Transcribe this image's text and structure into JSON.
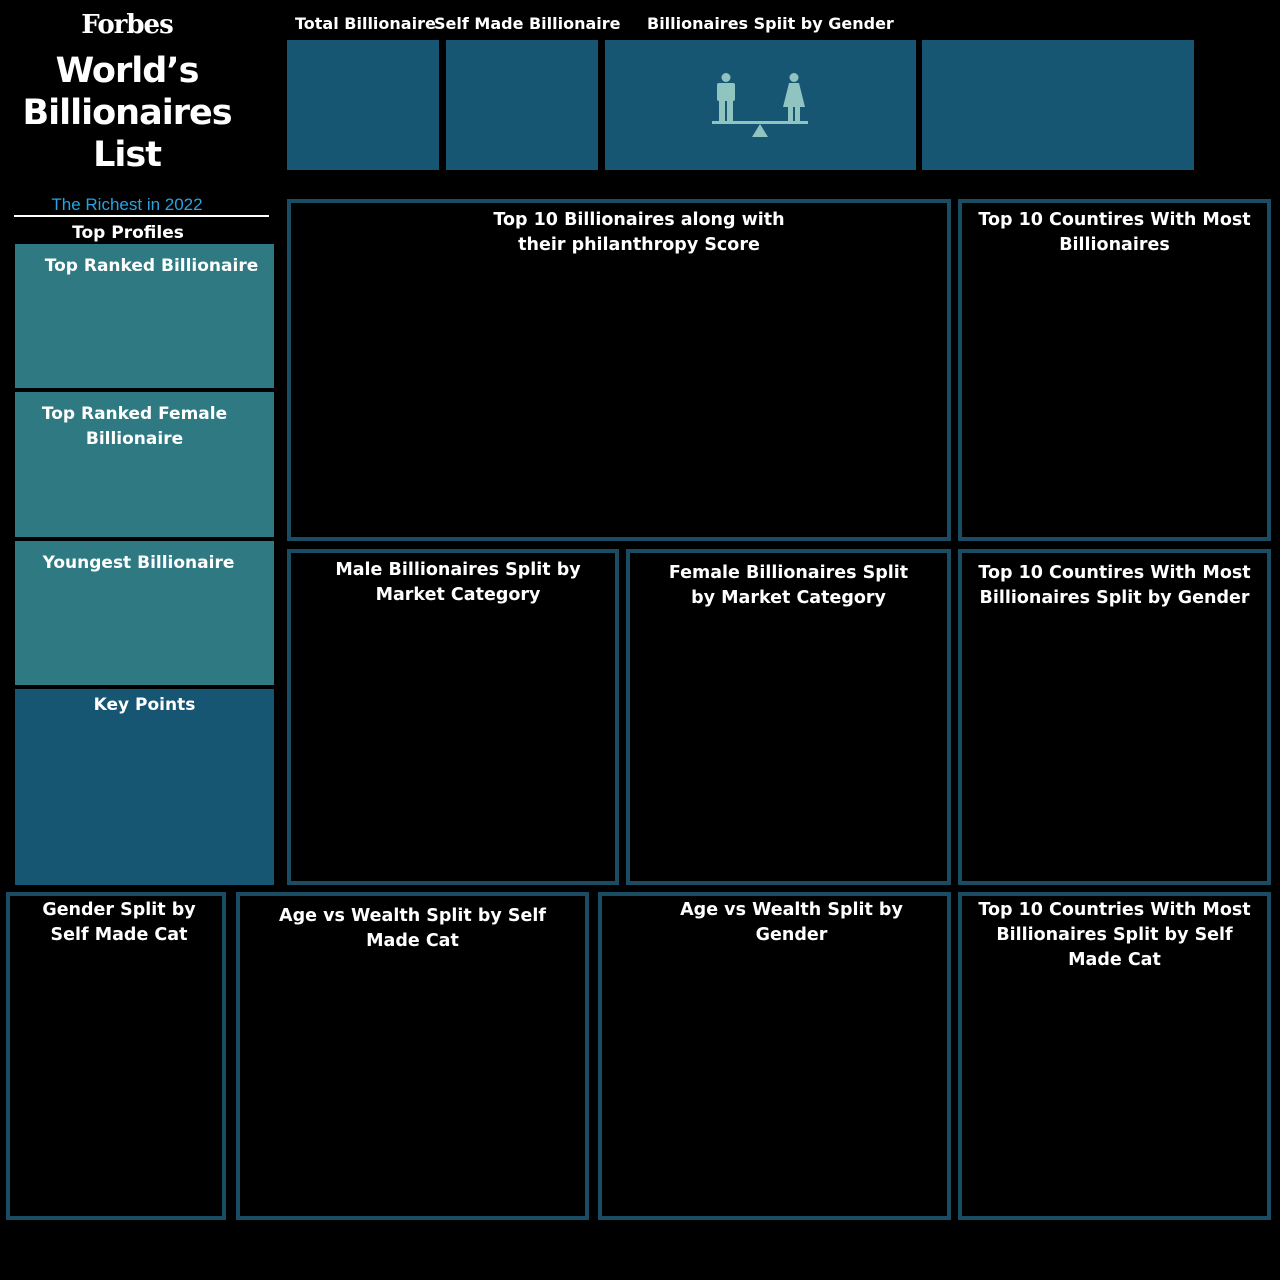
{
  "branding": {
    "logo_text": "Forbes",
    "title_lines": [
      "World’s",
      "Billionaires",
      "List"
    ],
    "subtitle": "The Richest in 2022",
    "top_profiles_label": "Top Profiles"
  },
  "kpis": {
    "total_billionaire_label": "Total Billionaire",
    "self_made_label": "Self Made Billionaire",
    "gender_split_label": "Billionaires Spiit by Gender",
    "gender_icon": "gender-scale-icon"
  },
  "profile_cards": {
    "top_ranked": "Top Ranked Billionaire",
    "top_female": "Top Ranked Female Billionaire",
    "youngest": "Youngest Billionaire",
    "key_points": "Key Points"
  },
  "panels": {
    "top10_philanthropy": "Top 10 Billionaires along with their philanthropy  Score",
    "top10_countries": "Top 10 Countires With Most Billionaires",
    "male_market": "Male Billionaires Split by Market Category",
    "female_market": "Female Billionaires Split by Market Category",
    "top10_countries_gender": "Top 10 Countires With Most Billionaires Split by Gender",
    "gender_selfmade": "Gender Split by Self Made Cat",
    "age_wealth_selfmade": "Age vs Wealth Split by Self Made Cat",
    "age_wealth_gender": "Age vs Wealth Split by Gender",
    "top10_countries_selfmade": "Top 10 Countries With Most Billionaires Split by Self Made Cat"
  },
  "colors": {
    "background": "#000000",
    "kpi_tile": "#175673",
    "profile_card": "#2f7a82",
    "panel_border": "#1a4d64",
    "subtitle_blue": "#27a3e3",
    "icon_fill": "#8fc4c0"
  }
}
